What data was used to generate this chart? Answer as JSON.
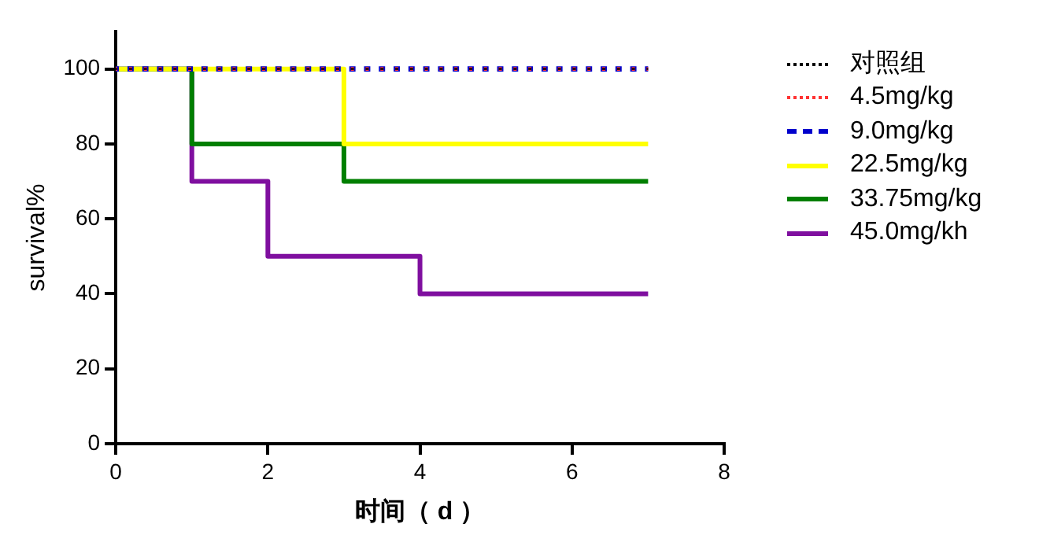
{
  "chart_data": {
    "type": "step",
    "xlabel": "时间（ d ）",
    "ylabel": "survival%",
    "xlim": [
      0,
      8
    ],
    "xticks": [
      0,
      2,
      4,
      6,
      8
    ],
    "ylim": [
      0,
      110
    ],
    "yticks": [
      0,
      20,
      40,
      60,
      80,
      100
    ],
    "grid": false,
    "legend": "right",
    "series": [
      {
        "name": "对照组",
        "color": "#000000",
        "line_style": "dotted",
        "x": [
          0,
          7
        ],
        "values": [
          100,
          100
        ]
      },
      {
        "name": "4.5mg/kg",
        "color": "#ff3333",
        "line_style": "dotted",
        "x": [
          0,
          7
        ],
        "values": [
          100,
          100
        ]
      },
      {
        "name": "9.0mg/kg",
        "color": "#0000cc",
        "line_style": "dashed",
        "x": [
          0,
          7
        ],
        "values": [
          100,
          100
        ]
      },
      {
        "name": "22.5mg/kg",
        "color": "#ffff00",
        "line_style": "solid",
        "x": [
          0,
          3,
          7
        ],
        "values": [
          100,
          80,
          80
        ]
      },
      {
        "name": "33.75mg/kg",
        "color": "#007f00",
        "line_style": "solid",
        "x": [
          0,
          1,
          3,
          7
        ],
        "values": [
          100,
          80,
          70,
          70
        ]
      },
      {
        "name": "45.0mg/kh",
        "color": "#7f0f9f",
        "line_style": "solid",
        "x": [
          0,
          1,
          2,
          4,
          7
        ],
        "values": [
          100,
          70,
          50,
          40,
          40
        ]
      }
    ]
  }
}
